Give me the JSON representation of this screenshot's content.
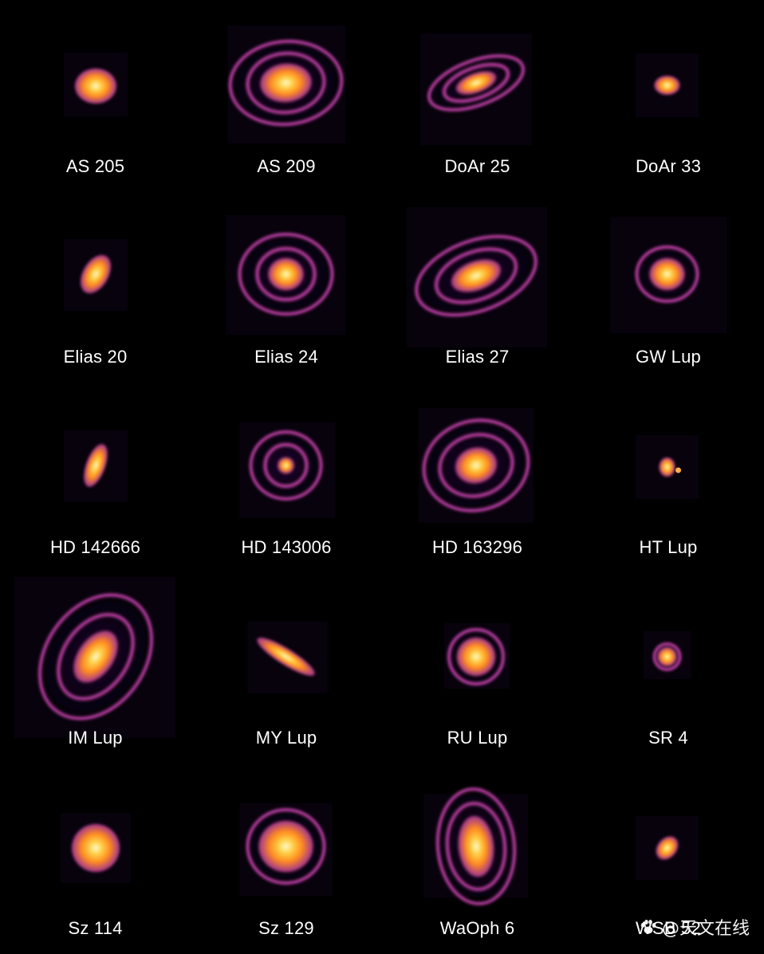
{
  "colors": {
    "background": "#000000",
    "label": "#ffffff",
    "core": "#fffbd0",
    "mid": "#ff8a1f",
    "outer": "#b13a9a",
    "faint": "#3a0f5c"
  },
  "disks": [
    {
      "name": "AS 205"
    },
    {
      "name": "AS 209"
    },
    {
      "name": "DoAr 25"
    },
    {
      "name": "DoAr 33"
    },
    {
      "name": "Elias 20"
    },
    {
      "name": "Elias 24"
    },
    {
      "name": "Elias 27"
    },
    {
      "name": "GW Lup"
    },
    {
      "name": "HD 142666"
    },
    {
      "name": "HD 143006"
    },
    {
      "name": "HD 163296"
    },
    {
      "name": "HT Lup"
    },
    {
      "name": "IM Lup"
    },
    {
      "name": "MY Lup"
    },
    {
      "name": "RU Lup"
    },
    {
      "name": "SR 4"
    },
    {
      "name": "Sz 114"
    },
    {
      "name": "Sz 129"
    },
    {
      "name": "WaOph 6"
    },
    {
      "name": "WSB 52"
    }
  ],
  "watermark": {
    "text": "@天文在线",
    "icon": "paw-icon"
  }
}
